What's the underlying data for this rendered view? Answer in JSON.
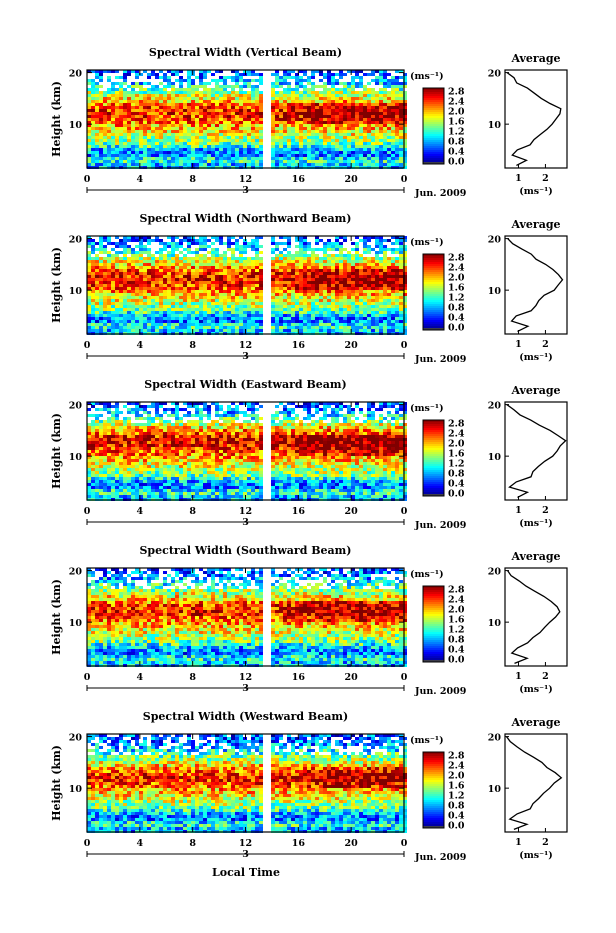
{
  "figure": {
    "bottom_xlabel": "Local Time",
    "month_label": "Jun. 2009",
    "day_label": "3",
    "colorbar_unit": "(ms⁻¹)",
    "avg_unit": "(ms⁻¹)",
    "avg_title": "Average",
    "ylabel": "Height (km)"
  },
  "chart_data": [
    {
      "type": "heatmap",
      "title": "Spectral Width (Vertical Beam)",
      "xlabel": "Local Time",
      "ylabel": "Height (km)",
      "x_ticks": [
        "0",
        "4",
        "8",
        "12",
        "16",
        "20",
        "0"
      ],
      "y_ticks": [
        "20",
        "10"
      ],
      "xlim": [
        0,
        24
      ],
      "ylim": [
        1.5,
        20.5
      ],
      "colorbar": {
        "unit": "(ms⁻¹)",
        "ticks": [
          "2.8",
          "2.4",
          "2.0",
          "1.6",
          "1.2",
          "0.8",
          "0.4",
          "0.0"
        ],
        "range": [
          0,
          3.0
        ]
      },
      "data_gap_hours": [
        13.3,
        14.0
      ],
      "average_profile": {
        "title": "Average",
        "xlabel": "(ms⁻¹)",
        "x_ticks": [
          "1",
          "2"
        ],
        "y_ticks": [
          "20",
          "10"
        ],
        "height_km": [
          2,
          3,
          4,
          5,
          6,
          7,
          8,
          9,
          10,
          11,
          12,
          13,
          14,
          15,
          16,
          17,
          18,
          19,
          20
        ],
        "width_ms": [
          0.9,
          1.3,
          0.7,
          0.9,
          1.4,
          1.6,
          1.8,
          2.0,
          2.2,
          2.4,
          2.6,
          2.5,
          2.2,
          1.9,
          1.6,
          1.3,
          1.0,
          0.8,
          0.6
        ]
      }
    },
    {
      "type": "heatmap",
      "title": "Spectral Width (Northward Beam)",
      "xlabel": "Local Time",
      "ylabel": "Height (km)",
      "x_ticks": [
        "0",
        "4",
        "8",
        "12",
        "16",
        "20",
        "0"
      ],
      "y_ticks": [
        "20",
        "10"
      ],
      "xlim": [
        0,
        24
      ],
      "ylim": [
        1.5,
        20.5
      ],
      "colorbar": {
        "unit": "(ms⁻¹)",
        "ticks": [
          "2.8",
          "2.4",
          "2.0",
          "1.6",
          "1.2",
          "0.8",
          "0.4",
          "0.0"
        ],
        "range": [
          0,
          3.0
        ]
      },
      "data_gap_hours": [
        13.3,
        14.0
      ],
      "average_profile": {
        "title": "Average",
        "xlabel": "(ms⁻¹)",
        "x_ticks": [
          "1",
          "2"
        ],
        "y_ticks": [
          "20",
          "10"
        ],
        "height_km": [
          2,
          3,
          4,
          5,
          6,
          7,
          8,
          9,
          10,
          11,
          12,
          13,
          14,
          15,
          16,
          17,
          18,
          19,
          20
        ],
        "width_ms": [
          0.9,
          1.3,
          0.7,
          0.9,
          1.4,
          1.6,
          1.8,
          2.0,
          2.3,
          2.5,
          2.6,
          2.5,
          2.3,
          2.0,
          1.7,
          1.4,
          1.1,
          0.8,
          0.6
        ]
      }
    },
    {
      "type": "heatmap",
      "title": "Spectral Width (Eastward Beam)",
      "xlabel": "Local Time",
      "ylabel": "Height (km)",
      "x_ticks": [
        "0",
        "4",
        "8",
        "12",
        "16",
        "20",
        "0"
      ],
      "y_ticks": [
        "20",
        "10"
      ],
      "xlim": [
        0,
        24
      ],
      "ylim": [
        1.5,
        20.5
      ],
      "colorbar": {
        "unit": "(ms⁻¹)",
        "ticks": [
          "2.8",
          "2.4",
          "2.0",
          "1.6",
          "1.2",
          "0.8",
          "0.4",
          "0.0"
        ],
        "range": [
          0,
          3.0
        ]
      },
      "data_gap_hours": [
        13.3,
        14.0
      ],
      "average_profile": {
        "title": "Average",
        "xlabel": "(ms⁻¹)",
        "x_ticks": [
          "1",
          "2"
        ],
        "y_ticks": [
          "20",
          "10"
        ],
        "height_km": [
          2,
          3,
          4,
          5,
          6,
          7,
          8,
          9,
          10,
          11,
          12,
          13,
          14,
          15,
          16,
          17,
          18,
          19,
          20
        ],
        "width_ms": [
          0.9,
          1.3,
          0.7,
          0.9,
          1.4,
          1.6,
          1.8,
          2.0,
          2.2,
          2.4,
          2.6,
          2.7,
          2.5,
          2.2,
          1.8,
          1.4,
          1.1,
          0.8,
          0.6
        ]
      }
    },
    {
      "type": "heatmap",
      "title": "Spectral Width (Southward Beam)",
      "xlabel": "Local Time",
      "ylabel": "Height (km)",
      "x_ticks": [
        "0",
        "4",
        "8",
        "12",
        "16",
        "20",
        "0"
      ],
      "y_ticks": [
        "20",
        "10"
      ],
      "xlim": [
        0,
        24
      ],
      "ylim": [
        1.5,
        20.5
      ],
      "colorbar": {
        "unit": "(ms⁻¹)",
        "ticks": [
          "2.8",
          "2.4",
          "2.0",
          "1.6",
          "1.2",
          "0.8",
          "0.4",
          "0.0"
        ],
        "range": [
          0,
          3.0
        ]
      },
      "data_gap_hours": [
        13.3,
        14.0
      ],
      "average_profile": {
        "title": "Average",
        "xlabel": "(ms⁻¹)",
        "x_ticks": [
          "1",
          "2"
        ],
        "y_ticks": [
          "20",
          "10"
        ],
        "height_km": [
          2,
          3,
          4,
          5,
          6,
          7,
          8,
          9,
          10,
          11,
          12,
          13,
          14,
          15,
          16,
          17,
          18,
          19,
          20
        ],
        "width_ms": [
          0.9,
          1.3,
          0.7,
          0.9,
          1.4,
          1.6,
          1.8,
          2.0,
          2.2,
          2.4,
          2.6,
          2.5,
          2.2,
          1.9,
          1.6,
          1.3,
          1.0,
          0.8,
          0.6
        ]
      }
    },
    {
      "type": "heatmap",
      "title": "Spectral Width (Westward Beam)",
      "xlabel": "Local Time",
      "ylabel": "Height (km)",
      "x_ticks": [
        "0",
        "4",
        "8",
        "12",
        "16",
        "20",
        "0"
      ],
      "y_ticks": [
        "20",
        "10"
      ],
      "xlim": [
        0,
        24
      ],
      "ylim": [
        1.5,
        20.5
      ],
      "colorbar": {
        "unit": "(ms⁻¹)",
        "ticks": [
          "2.8",
          "2.4",
          "2.0",
          "1.6",
          "1.2",
          "0.8",
          "0.4",
          "0.0"
        ],
        "range": [
          0,
          3.0
        ]
      },
      "data_gap_hours": [
        13.3,
        14.0
      ],
      "average_profile": {
        "title": "Average",
        "xlabel": "(ms⁻¹)",
        "x_ticks": [
          "1",
          "2"
        ],
        "y_ticks": [
          "20",
          "10"
        ],
        "height_km": [
          2,
          3,
          4,
          5,
          6,
          7,
          8,
          9,
          10,
          11,
          12,
          13,
          14,
          15,
          16,
          17,
          18,
          19,
          20
        ],
        "width_ms": [
          0.9,
          1.3,
          0.7,
          0.9,
          1.4,
          1.6,
          1.8,
          2.0,
          2.2,
          2.4,
          2.6,
          2.4,
          2.1,
          1.8,
          1.5,
          1.2,
          0.9,
          0.7,
          0.6
        ]
      }
    }
  ]
}
